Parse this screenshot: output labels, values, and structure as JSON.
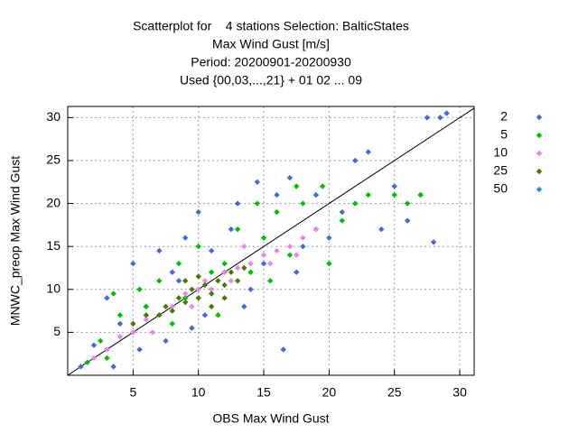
{
  "chart_data": {
    "type": "scatter",
    "title": "Scatterplot for    4 stations Selection: BalticStates",
    "subtitle": [
      "Max Wind Gust [m/s]",
      "Period: 20200901-20200930",
      "Used {00,03,...,21} + 01 02 ... 09"
    ],
    "x_label": "OBS Max Wind Gust",
    "y_label": "MNWC_preop Max Wind Gust",
    "xlim": [
      0,
      31.1
    ],
    "ylim": [
      0,
      31.3
    ],
    "xticks": [
      5,
      10,
      15,
      20,
      25,
      30
    ],
    "yticks": [
      5,
      10,
      15,
      20,
      25,
      30
    ],
    "grid": true,
    "diagonal": true,
    "legend": "right",
    "series": [
      {
        "name": "2",
        "color": "#4169e1",
        "x": [
          1,
          2,
          3,
          3.5,
          4,
          5,
          5.5,
          6,
          7,
          7.5,
          8,
          9,
          9.5,
          10,
          10.5,
          11,
          12,
          12.5,
          13,
          14,
          14.5,
          15,
          16,
          17,
          17.5,
          18,
          19,
          20,
          21,
          22,
          23,
          24,
          25,
          26,
          27,
          27.5,
          28,
          28.5,
          29,
          16.5,
          8.5,
          13.5
        ],
        "values": [
          1,
          3.5,
          9,
          1,
          6,
          13,
          3,
          8,
          14.5,
          4,
          12,
          16,
          5.5,
          19,
          7,
          14.5,
          12,
          17,
          20,
          10,
          22.5,
          13,
          21,
          23,
          12,
          15,
          21,
          16,
          19,
          25,
          26,
          17,
          22,
          18,
          21,
          30,
          15.5,
          30,
          30.5,
          3,
          11,
          8
        ]
      },
      {
        "name": "5",
        "color": "#00c000",
        "x": [
          1.5,
          2.5,
          3,
          4,
          5,
          5.5,
          6,
          7,
          8,
          8.5,
          9,
          10,
          11,
          12,
          13,
          14,
          15,
          15.5,
          16,
          17,
          18,
          19,
          19.5,
          20,
          21,
          22,
          23,
          25,
          26,
          27,
          3.5,
          11.5,
          14.5,
          17.5
        ],
        "values": [
          1.5,
          4,
          2,
          7,
          5,
          10,
          8,
          11,
          6,
          13,
          9,
          15,
          12,
          13,
          17,
          12,
          16,
          11,
          19,
          14,
          20,
          17,
          22,
          13,
          18,
          20,
          21,
          21,
          20,
          21,
          9.5,
          7,
          20,
          22
        ]
      },
      {
        "name": "10",
        "color": "#ee82ee",
        "x": [
          2,
          3,
          4,
          5,
          6,
          7,
          8,
          9,
          10,
          11,
          12,
          13,
          14,
          15,
          16,
          17,
          18,
          19,
          6.5,
          9.5,
          12.5,
          15.5,
          17.5,
          10.5,
          13.5
        ],
        "values": [
          2,
          3,
          4.5,
          5,
          6.5,
          7,
          8,
          9.5,
          10,
          10,
          12,
          12.5,
          13,
          14,
          14.5,
          15,
          16,
          17,
          5,
          8,
          11,
          13,
          14,
          11,
          15
        ]
      },
      {
        "name": "25",
        "color": "#4b7a00",
        "x": [
          5,
          6,
          7,
          7.5,
          8,
          8.5,
          9,
          9.5,
          10,
          10.5,
          11,
          11.5,
          12,
          12.5,
          13,
          13.5,
          9,
          10,
          11,
          12
        ],
        "values": [
          6,
          7,
          7,
          8,
          7.5,
          9,
          8.5,
          10,
          9,
          10.5,
          9.5,
          11,
          10.5,
          12,
          11,
          12.5,
          11,
          11.5,
          8,
          9
        ]
      },
      {
        "name": "50",
        "color": "#1e90ff",
        "x": [],
        "values": []
      }
    ]
  }
}
